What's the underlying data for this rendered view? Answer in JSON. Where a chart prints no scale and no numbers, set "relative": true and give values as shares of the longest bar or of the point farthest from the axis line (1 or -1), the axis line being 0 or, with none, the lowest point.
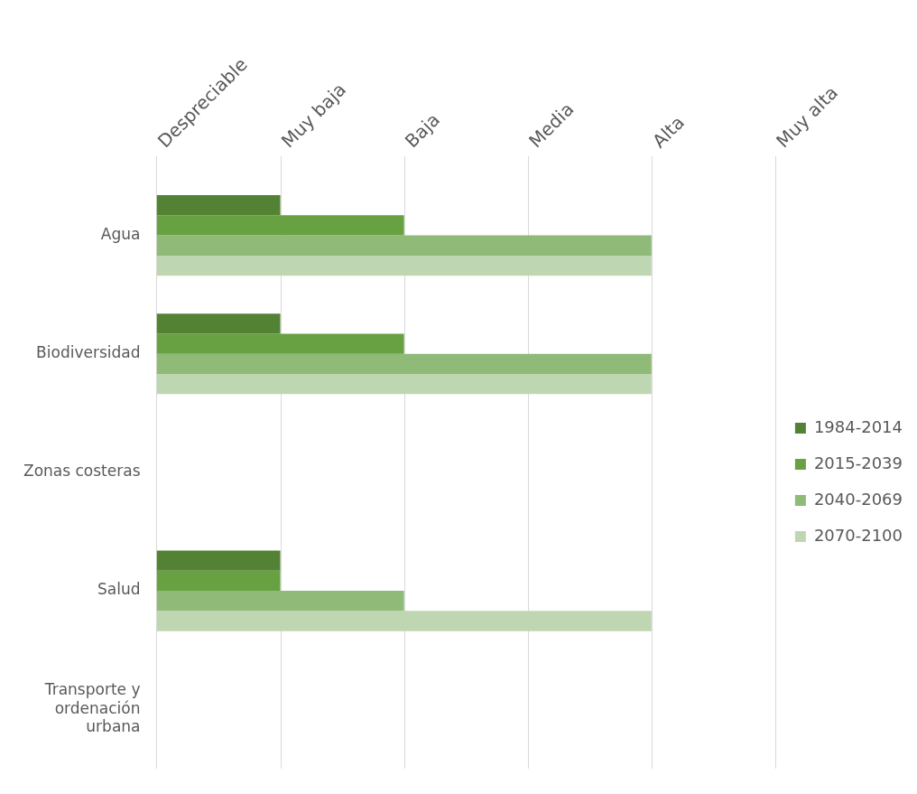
{
  "chart_data": {
    "type": "bar",
    "orientation": "horizontal",
    "relative": true,
    "categories": [
      "Agua",
      "Biodiversidad",
      "Zonas costeras",
      "Salud",
      "Transporte y ordenación urbana"
    ],
    "series": [
      {
        "name": "1984-2014",
        "color": "#548235",
        "values": [
          0.25,
          0.25,
          0,
          0.25,
          0
        ]
      },
      {
        "name": "2015-2039",
        "color": "#67a141",
        "values": [
          0.5,
          0.5,
          0,
          0.25,
          0
        ]
      },
      {
        "name": "2040-2069",
        "color": "#8fba77",
        "values": [
          1,
          1,
          0,
          0.5,
          0
        ]
      },
      {
        "name": "2070-2100",
        "color": "#bed7b2",
        "values": [
          1,
          1,
          0,
          1,
          0
        ]
      }
    ],
    "annotations": [
      "Despreciable",
      "Muy baja",
      "Baja",
      "Media",
      "Alta",
      "Muy alta"
    ],
    "grid": "x",
    "legend": "right"
  }
}
